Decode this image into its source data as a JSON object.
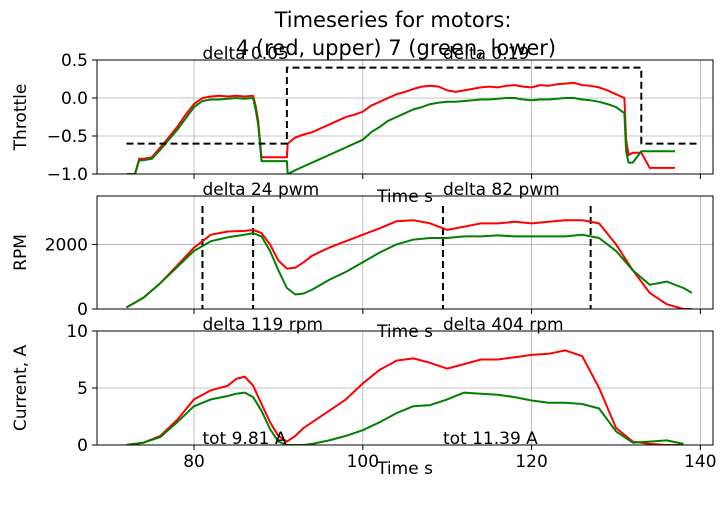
{
  "title_line1": "Timeseries for motors:",
  "title_line2": "4 (red, upper) 7 (green, lower)",
  "colors": {
    "motor4": "#ff0000",
    "motor7": "#008000",
    "reference": "#000000",
    "grid": "#b0b0b0"
  },
  "chart_data": [
    {
      "type": "line",
      "panel": "throttle",
      "xlabel": "Time s",
      "ylabel": "Throttle",
      "xlim": [
        68.5,
        141.5
      ],
      "ylim": [
        -1.0,
        0.5
      ],
      "xticks": [
        80,
        100,
        120,
        140
      ],
      "xtick_labels_visible": false,
      "yticks": [
        -1.0,
        -0.5,
        0.0,
        0.5
      ],
      "ytick_labels": [
        "−1.0",
        "−0.5",
        "0.0",
        "0.5"
      ],
      "grid": true,
      "annotations": [
        {
          "text": "delta 0.05",
          "x": 81,
          "y": 0.55
        },
        {
          "text": "delta 0.19",
          "x": 109.5,
          "y": 0.55
        }
      ],
      "series": [
        {
          "color": "#ff0000",
          "style": "solid",
          "x": [
            72,
            73,
            73.5,
            74,
            75,
            76,
            77,
            78,
            79,
            80,
            81,
            82,
            83,
            84,
            85,
            86,
            87,
            87.3,
            87.6,
            88,
            91.0,
            91.1,
            92,
            93,
            94,
            95,
            96,
            97,
            98,
            99,
            100,
            101,
            102,
            103,
            104,
            105,
            106,
            107,
            108,
            109,
            110,
            111,
            112,
            113,
            114,
            115,
            116,
            117,
            118,
            119,
            120,
            121,
            122,
            123,
            124,
            125,
            126,
            127,
            128,
            129,
            130,
            131,
            131.2,
            131.5,
            132,
            133,
            134,
            135,
            136,
            137
          ],
          "y": [
            -1.0,
            -1.0,
            -0.8,
            -0.8,
            -0.78,
            -0.65,
            -0.52,
            -0.38,
            -0.22,
            -0.08,
            0.0,
            0.02,
            0.03,
            0.02,
            0.03,
            0.02,
            0.03,
            -0.1,
            -0.3,
            -0.78,
            -0.78,
            -0.6,
            -0.52,
            -0.48,
            -0.45,
            -0.4,
            -0.35,
            -0.3,
            -0.25,
            -0.22,
            -0.18,
            -0.1,
            -0.05,
            0.0,
            0.05,
            0.08,
            0.12,
            0.15,
            0.16,
            0.15,
            0.1,
            0.08,
            0.1,
            0.12,
            0.14,
            0.15,
            0.14,
            0.16,
            0.17,
            0.15,
            0.14,
            0.17,
            0.16,
            0.18,
            0.19,
            0.2,
            0.17,
            0.16,
            0.14,
            0.1,
            0.05,
            0.0,
            -0.55,
            -0.75,
            -0.72,
            -0.72,
            -0.92,
            -0.92,
            -0.92,
            -0.92
          ]
        },
        {
          "color": "#008000",
          "style": "solid",
          "x": [
            72,
            73,
            73.5,
            74,
            75,
            76,
            77,
            78,
            79,
            80,
            81,
            82,
            83,
            84,
            85,
            86,
            87,
            87.3,
            87.6,
            88,
            91.0,
            91.1,
            92,
            93,
            94,
            95,
            96,
            97,
            98,
            99,
            100,
            101,
            102,
            103,
            104,
            105,
            106,
            107,
            108,
            109,
            110,
            111,
            112,
            113,
            114,
            115,
            116,
            117,
            118,
            119,
            120,
            121,
            122,
            123,
            124,
            125,
            126,
            127,
            128,
            129,
            130,
            131,
            131.2,
            131.5,
            132,
            133,
            134,
            135,
            136,
            137
          ],
          "y": [
            -1.0,
            -1.0,
            -0.82,
            -0.82,
            -0.8,
            -0.68,
            -0.55,
            -0.42,
            -0.27,
            -0.12,
            -0.04,
            -0.02,
            -0.02,
            -0.01,
            0.0,
            -0.01,
            0.0,
            -0.15,
            -0.35,
            -0.83,
            -0.83,
            -1.0,
            -0.95,
            -0.9,
            -0.85,
            -0.8,
            -0.75,
            -0.7,
            -0.65,
            -0.6,
            -0.55,
            -0.45,
            -0.38,
            -0.3,
            -0.25,
            -0.2,
            -0.15,
            -0.12,
            -0.08,
            -0.06,
            -0.05,
            -0.05,
            -0.04,
            -0.03,
            -0.02,
            -0.02,
            -0.01,
            0.0,
            0.0,
            -0.02,
            -0.03,
            -0.02,
            -0.02,
            -0.01,
            0.0,
            0.0,
            -0.02,
            -0.03,
            -0.05,
            -0.08,
            -0.12,
            -0.2,
            -0.7,
            -0.85,
            -0.85,
            -0.7,
            -0.7,
            -0.7,
            -0.7,
            -0.7
          ]
        },
        {
          "color": "#000000",
          "style": "dashed",
          "x": [
            72,
            91.0,
            91.0,
            133,
            133,
            140
          ],
          "y": [
            -0.6,
            -0.6,
            0.4,
            0.4,
            -0.6,
            -0.6
          ]
        }
      ]
    },
    {
      "type": "line",
      "panel": "rpm",
      "xlabel": "Time s",
      "ylabel": "RPM",
      "xlim": [
        68.5,
        141.5
      ],
      "ylim": [
        0,
        3500
      ],
      "xticks": [
        80,
        100,
        120,
        140
      ],
      "xtick_labels_visible": false,
      "yticks": [
        0,
        2000
      ],
      "ytick_labels": [
        "0",
        "2000"
      ],
      "grid": true,
      "annotations": [
        {
          "text": "delta 24 pwm",
          "x": 81,
          "y": 3520
        },
        {
          "text": "delta 82 pwm",
          "x": 109.5,
          "y": 3520
        }
      ],
      "vlines": [
        81,
        87,
        109.5,
        127
      ],
      "series": [
        {
          "color": "#ff0000",
          "style": "solid",
          "x": [
            72,
            74,
            76,
            78,
            80,
            82,
            84,
            86,
            87,
            88,
            89,
            90,
            91,
            92,
            93,
            94,
            96,
            98,
            100,
            102,
            104,
            106,
            108,
            110,
            112,
            114,
            116,
            118,
            120,
            122,
            124,
            126,
            128,
            130,
            132,
            134,
            136,
            138,
            139
          ],
          "y": [
            50,
            350,
            800,
            1350,
            1900,
            2300,
            2400,
            2420,
            2450,
            2350,
            2000,
            1500,
            1250,
            1280,
            1450,
            1650,
            1900,
            2100,
            2300,
            2500,
            2720,
            2750,
            2650,
            2450,
            2550,
            2650,
            2650,
            2700,
            2650,
            2700,
            2750,
            2750,
            2650,
            2000,
            1200,
            500,
            150,
            0,
            0
          ]
        },
        {
          "color": "#008000",
          "style": "solid",
          "x": [
            72,
            74,
            76,
            78,
            80,
            82,
            84,
            86,
            87,
            88,
            89,
            90,
            91,
            92,
            93,
            94,
            96,
            98,
            100,
            102,
            104,
            106,
            108,
            110,
            112,
            114,
            116,
            118,
            120,
            122,
            124,
            126,
            128,
            130,
            132,
            134,
            136,
            138,
            139
          ],
          "y": [
            50,
            350,
            800,
            1300,
            1800,
            2100,
            2220,
            2300,
            2350,
            2250,
            1800,
            1200,
            650,
            450,
            480,
            600,
            900,
            1150,
            1450,
            1750,
            2000,
            2150,
            2200,
            2200,
            2250,
            2250,
            2280,
            2250,
            2250,
            2250,
            2250,
            2300,
            2200,
            1800,
            1200,
            750,
            850,
            650,
            500
          ]
        }
      ]
    },
    {
      "type": "line",
      "panel": "current",
      "xlabel": "Time s",
      "ylabel": "Current, A",
      "xlim": [
        68.5,
        141.5
      ],
      "ylim": [
        0,
        10
      ],
      "xticks": [
        80,
        100,
        120,
        140
      ],
      "xtick_labels": [
        "80",
        "100",
        "120",
        "140"
      ],
      "yticks": [
        0,
        5,
        10
      ],
      "ytick_labels": [
        "0",
        "5",
        "10"
      ],
      "grid": true,
      "annotations": [
        {
          "text": "delta 119 rpm",
          "x": 81,
          "y": 10.1
        },
        {
          "text": "delta 404 rpm",
          "x": 109.5,
          "y": 10.1
        },
        {
          "text": "tot 9.81 A",
          "x": 81,
          "y": 0.0
        },
        {
          "text": "tot 11.39 A",
          "x": 109.5,
          "y": 0.0
        }
      ],
      "series": [
        {
          "color": "#ff0000",
          "style": "solid",
          "x": [
            72,
            74,
            76,
            78,
            80,
            82,
            84,
            85,
            86,
            87,
            88,
            89,
            90,
            91,
            92,
            93,
            94,
            96,
            98,
            100,
            102,
            104,
            106,
            108,
            110,
            112,
            114,
            116,
            118,
            120,
            122,
            124,
            126,
            128,
            130,
            132,
            134,
            136,
            138
          ],
          "y": [
            0,
            0.2,
            0.8,
            2.2,
            4.0,
            4.8,
            5.2,
            5.8,
            6.0,
            5.2,
            3.6,
            2.0,
            0.8,
            0.3,
            0.8,
            1.5,
            2.0,
            3.0,
            4.0,
            5.4,
            6.6,
            7.4,
            7.6,
            7.2,
            6.7,
            7.1,
            7.5,
            7.5,
            7.7,
            7.9,
            8.0,
            8.3,
            7.8,
            5.0,
            1.5,
            0.3,
            0.1,
            0.0,
            0.0
          ]
        },
        {
          "color": "#008000",
          "style": "solid",
          "x": [
            72,
            74,
            76,
            78,
            80,
            82,
            84,
            85,
            86,
            87,
            88,
            89,
            90,
            91,
            92,
            93,
            94,
            96,
            98,
            100,
            102,
            104,
            106,
            108,
            110,
            112,
            114,
            116,
            118,
            120,
            122,
            124,
            126,
            128,
            130,
            132,
            134,
            136,
            138
          ],
          "y": [
            0,
            0.2,
            0.7,
            2.0,
            3.4,
            4.0,
            4.3,
            4.5,
            4.6,
            4.2,
            3.0,
            1.4,
            0.3,
            0.0,
            0.0,
            0.0,
            0.1,
            0.4,
            0.8,
            1.3,
            2.0,
            2.8,
            3.4,
            3.5,
            4.0,
            4.6,
            4.5,
            4.4,
            4.2,
            3.9,
            3.7,
            3.7,
            3.6,
            3.2,
            1.2,
            0.2,
            0.3,
            0.4,
            0.1
          ]
        }
      ]
    }
  ]
}
